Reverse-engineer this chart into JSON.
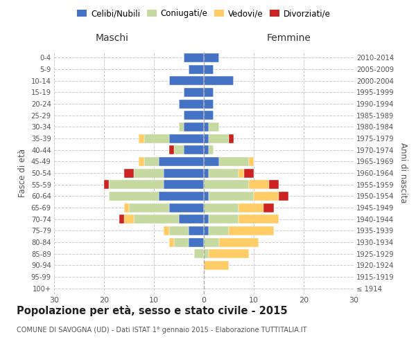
{
  "age_groups": [
    "100+",
    "95-99",
    "90-94",
    "85-89",
    "80-84",
    "75-79",
    "70-74",
    "65-69",
    "60-64",
    "55-59",
    "50-54",
    "45-49",
    "40-44",
    "35-39",
    "30-34",
    "25-29",
    "20-24",
    "15-19",
    "10-14",
    "5-9",
    "0-4"
  ],
  "birth_years": [
    "≤ 1914",
    "1915-1919",
    "1920-1924",
    "1925-1929",
    "1930-1934",
    "1935-1939",
    "1940-1944",
    "1945-1949",
    "1950-1954",
    "1955-1959",
    "1960-1964",
    "1965-1969",
    "1970-1974",
    "1975-1979",
    "1980-1984",
    "1985-1989",
    "1990-1994",
    "1995-1999",
    "2000-2004",
    "2005-2009",
    "2010-2014"
  ],
  "males": {
    "celibi": [
      0,
      0,
      0,
      0,
      3,
      3,
      5,
      7,
      9,
      8,
      8,
      9,
      4,
      7,
      4,
      4,
      5,
      4,
      7,
      3,
      4
    ],
    "coniugati": [
      0,
      0,
      0,
      2,
      3,
      4,
      9,
      8,
      10,
      11,
      6,
      3,
      2,
      5,
      1,
      0,
      0,
      0,
      0,
      0,
      0
    ],
    "vedovi": [
      0,
      0,
      0,
      0,
      1,
      1,
      2,
      1,
      0,
      0,
      0,
      1,
      0,
      1,
      0,
      0,
      0,
      0,
      0,
      0,
      0
    ],
    "divorziati": [
      0,
      0,
      0,
      0,
      0,
      0,
      1,
      0,
      0,
      1,
      2,
      0,
      1,
      0,
      0,
      0,
      0,
      0,
      0,
      0,
      0
    ]
  },
  "females": {
    "nubili": [
      0,
      0,
      0,
      0,
      0,
      1,
      1,
      0,
      1,
      0,
      1,
      3,
      1,
      1,
      1,
      2,
      2,
      2,
      6,
      2,
      3
    ],
    "coniugate": [
      0,
      0,
      0,
      1,
      3,
      4,
      6,
      7,
      9,
      9,
      6,
      6,
      1,
      4,
      2,
      0,
      0,
      0,
      0,
      0,
      0
    ],
    "vedove": [
      0,
      0,
      5,
      8,
      8,
      9,
      8,
      5,
      5,
      4,
      1,
      1,
      0,
      0,
      0,
      0,
      0,
      0,
      0,
      0,
      0
    ],
    "divorziate": [
      0,
      0,
      0,
      0,
      0,
      0,
      0,
      2,
      2,
      2,
      2,
      0,
      0,
      1,
      0,
      0,
      0,
      0,
      0,
      0,
      0
    ]
  },
  "color_celibi": "#4472C4",
  "color_coniugati": "#C5D9A0",
  "color_vedovi": "#FFCC66",
  "color_divorziati": "#CC2222",
  "xlim": 30,
  "title": "Popolazione per età, sesso e stato civile - 2015",
  "subtitle": "COMUNE DI SAVOGNA (UD) - Dati ISTAT 1° gennaio 2015 - Elaborazione TUTTITALIA.IT",
  "ylabel_left": "Fasce di età",
  "ylabel_right": "Anni di nascita",
  "xlabel_left": "Maschi",
  "xlabel_right": "Femmine",
  "legend_labels": [
    "Celibi/Nubili",
    "Coniugati/e",
    "Vedovi/e",
    "Divorziati/e"
  ],
  "bg_color": "#ffffff",
  "grid_color": "#cccccc",
  "text_color": "#555555",
  "title_color": "#222222"
}
